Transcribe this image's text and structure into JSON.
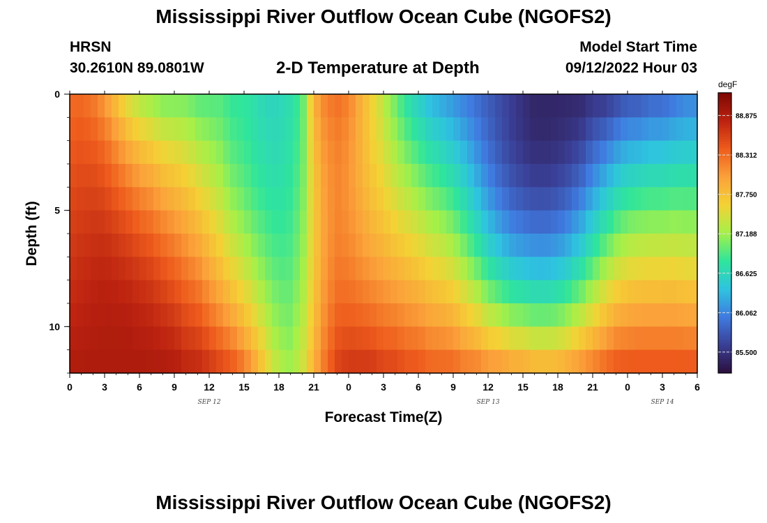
{
  "header": {
    "title": "Mississippi River Outflow Ocean Cube (NGOFS2)",
    "station": "HRSN",
    "coords": "30.2610N  89.0801W",
    "plot_title": "2-D Temperature at Depth",
    "model_start_label": "Model Start Time",
    "model_start_value": "09/12/2022 Hour 03"
  },
  "footer": {
    "title": "Mississippi River Outflow Ocean Cube (NGOFS2)"
  },
  "chart_data": {
    "type": "heatmap",
    "xlabel": "Forecast Time(Z)",
    "ylabel": "Depth (ft)",
    "x_ticks": [
      "0",
      "3",
      "6",
      "9",
      "12",
      "15",
      "18",
      "21",
      "0",
      "3",
      "6",
      "9",
      "12",
      "15",
      "18",
      "21",
      "0",
      "3",
      "6"
    ],
    "x_range_hours": [
      0,
      54
    ],
    "date_labels": [
      {
        "label": "SEP 12",
        "hour": 12
      },
      {
        "label": "SEP 13",
        "hour": 36
      },
      {
        "label": "SEP 14",
        "hour": 51
      }
    ],
    "y_ticks": [
      "0",
      "5",
      "10"
    ],
    "y_range": [
      0,
      12
    ],
    "y_inverted": true,
    "colorbar": {
      "unit": "degF",
      "min": 85.2,
      "max": 89.2,
      "ticks": [
        "88.875",
        "88.312",
        "87.750",
        "87.188",
        "86.625",
        "86.062",
        "85.500"
      ],
      "colors": [
        "#2b0f3d",
        "#3a3f95",
        "#3f7be0",
        "#2ec4df",
        "#2fe59b",
        "#a6f048",
        "#f4d235",
        "#fba13a",
        "#ee5b1c",
        "#bc2210",
        "#7d0803"
      ]
    },
    "depths_ft": [
      0,
      1,
      2,
      3,
      4,
      5,
      6,
      7,
      8,
      9,
      10,
      11,
      12
    ],
    "profile_time_hours": [
      0,
      1,
      2,
      3,
      4,
      5,
      6,
      7,
      8,
      9,
      10,
      11,
      12,
      13,
      14,
      15,
      16,
      17,
      18,
      19,
      20,
      21,
      22,
      23,
      24,
      25,
      26,
      27,
      28,
      29,
      30,
      31,
      32,
      33,
      34,
      35,
      36,
      37,
      38,
      39,
      40,
      41,
      42,
      43,
      44,
      45,
      46,
      47,
      48,
      49,
      50,
      51,
      52,
      53,
      54
    ],
    "surface_degF": [
      88.3,
      88.3,
      88.2,
      88.0,
      87.7,
      87.4,
      87.2,
      87.1,
      87.0,
      87.0,
      87.0,
      86.9,
      86.9,
      86.9,
      86.8,
      86.8,
      86.7,
      86.6,
      86.6,
      86.7,
      86.9,
      87.9,
      88.2,
      88.3,
      88.2,
      87.9,
      87.6,
      87.3,
      87.0,
      86.7,
      86.5,
      86.3,
      86.2,
      86.1,
      86.0,
      85.9,
      85.8,
      85.7,
      85.6,
      85.5,
      85.4,
      85.4,
      85.4,
      85.4,
      85.4,
      85.5,
      85.5,
      85.6,
      85.7,
      85.7,
      85.8,
      85.8,
      85.9,
      86.0,
      86.0
    ],
    "bottom_degF": [
      88.9,
      88.9,
      88.9,
      88.9,
      88.9,
      88.9,
      88.9,
      88.9,
      88.9,
      88.9,
      88.8,
      88.8,
      88.7,
      88.6,
      88.5,
      88.3,
      88.0,
      87.6,
      87.3,
      87.2,
      87.4,
      87.9,
      88.3,
      88.6,
      88.7,
      88.7,
      88.7,
      88.6,
      88.6,
      88.5,
      88.5,
      88.4,
      88.4,
      88.4,
      88.3,
      88.3,
      88.2,
      88.2,
      88.1,
      88.1,
      88.0,
      88.0,
      88.0,
      88.1,
      88.2,
      88.3,
      88.4,
      88.5,
      88.5,
      88.5,
      88.5,
      88.5,
      88.5,
      88.5,
      88.5
    ],
    "mid_degF": [
      88.6,
      88.7,
      88.8,
      88.9,
      88.9,
      88.9,
      88.8,
      88.7,
      88.5,
      88.3,
      88.1,
      87.9,
      87.6,
      87.3,
      87.0,
      86.8,
      86.7,
      86.7,
      86.7,
      86.8,
      87.0,
      87.4,
      87.8,
      87.9,
      87.8,
      87.7,
      87.6,
      87.6,
      87.5,
      87.5,
      87.4,
      87.3,
      87.2,
      87.0,
      86.7,
      86.3,
      85.9,
      85.6,
      85.4,
      85.3,
      85.3,
      85.3,
      85.4,
      85.6,
      85.9,
      86.3,
      86.7,
      87.0,
      87.2,
      87.3,
      87.3,
      87.3,
      87.3,
      87.2,
      87.2
    ]
  }
}
